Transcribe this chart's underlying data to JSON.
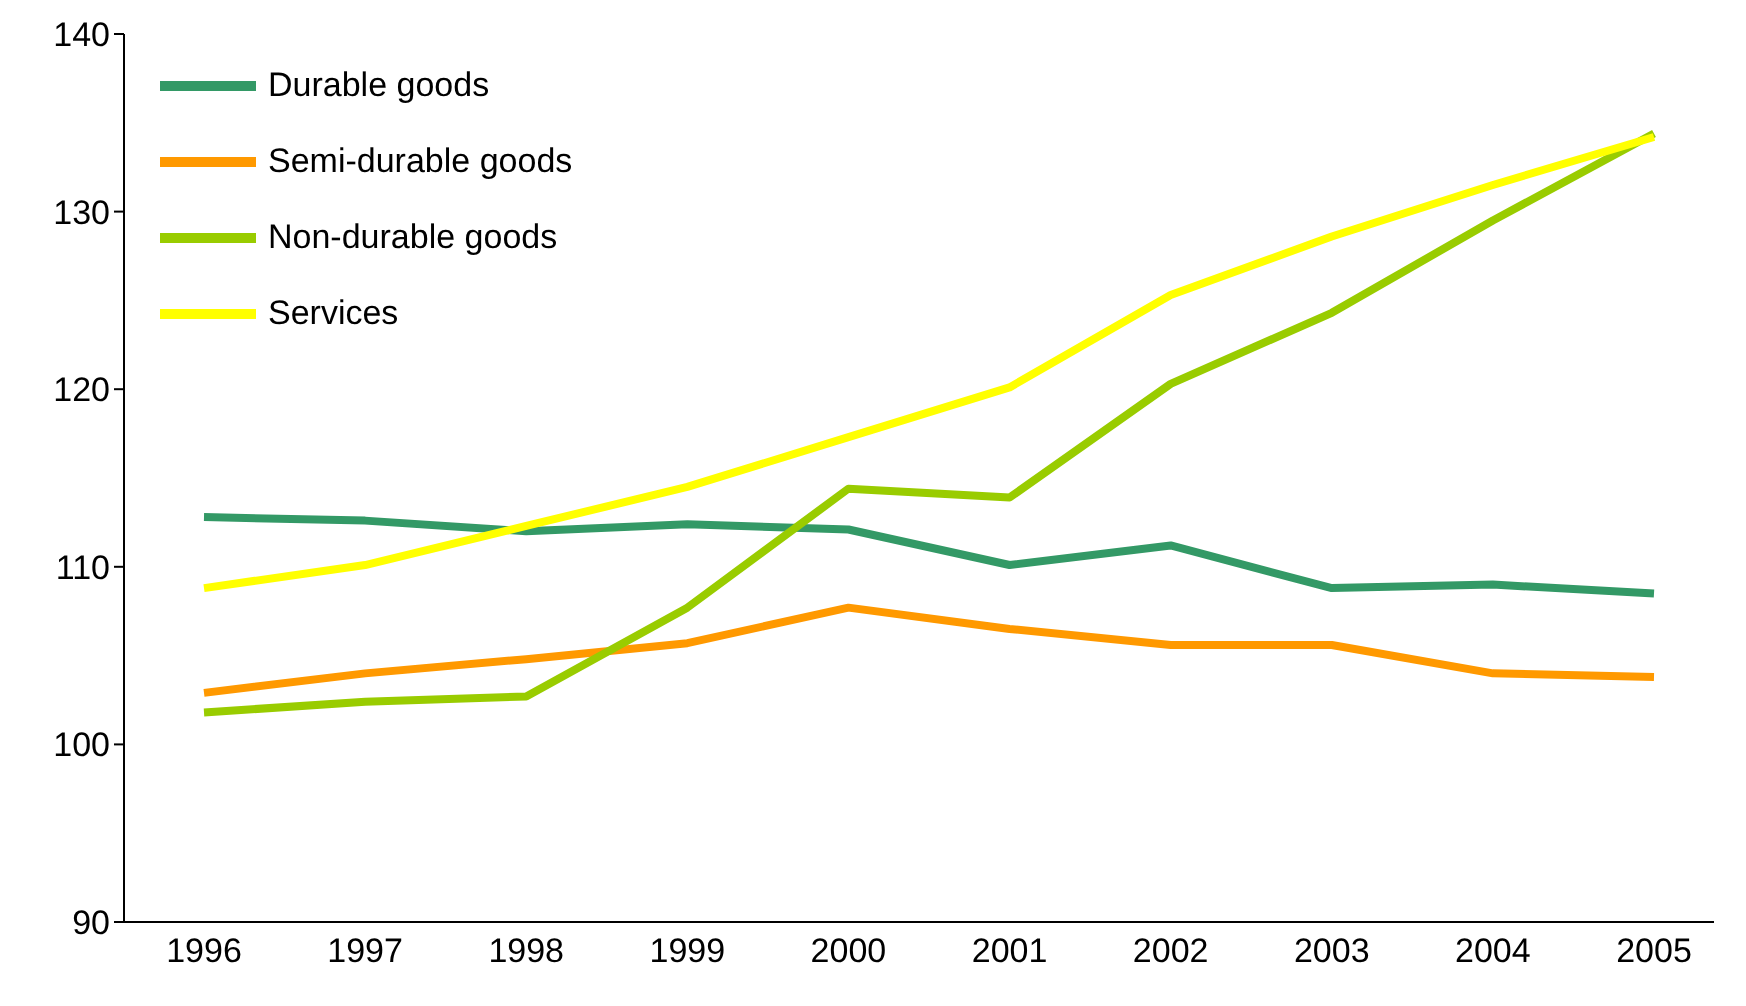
{
  "chart_data": {
    "type": "line",
    "categories": [
      "1996",
      "1997",
      "1998",
      "1999",
      "2000",
      "2001",
      "2002",
      "2003",
      "2004",
      "2005"
    ],
    "series": [
      {
        "name": "Durable goods",
        "color": "#339966",
        "values": [
          112.8,
          112.6,
          112.0,
          112.4,
          112.1,
          110.1,
          111.2,
          108.8,
          109.0,
          108.5
        ]
      },
      {
        "name": "Semi-durable goods",
        "color": "#ff9900",
        "values": [
          102.9,
          104.0,
          104.8,
          105.7,
          107.7,
          106.5,
          105.6,
          105.6,
          104.0,
          103.8
        ]
      },
      {
        "name": "Non-durable goods",
        "color": "#99cc00",
        "values": [
          101.8,
          102.4,
          102.7,
          107.7,
          114.4,
          113.9,
          120.3,
          124.3,
          129.5,
          134.4
        ]
      },
      {
        "name": "Services",
        "color": "#ffff00",
        "values": [
          108.8,
          110.1,
          112.3,
          114.5,
          117.3,
          120.1,
          125.3,
          128.6,
          131.5,
          134.2
        ]
      }
    ],
    "ylim": [
      90,
      140
    ],
    "yticks": [
      90,
      100,
      110,
      120,
      130,
      140
    ],
    "grid": false,
    "legend": "top left",
    "marker": "none",
    "line_style": "solid"
  }
}
